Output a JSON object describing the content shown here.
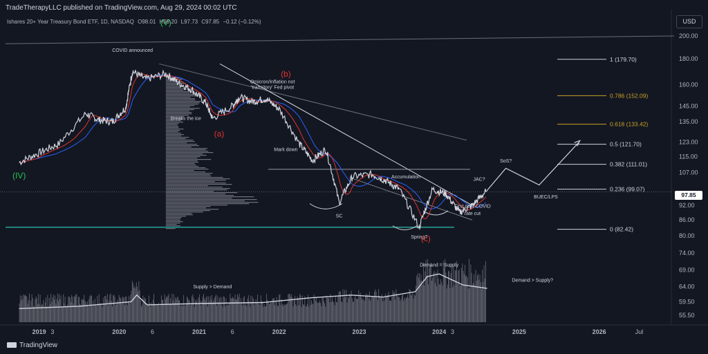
{
  "header": {
    "publisher": "TradeTherapyLLC published on TradingView.com, Aug 29, 2024 00:02 UTC",
    "symbol": "Ishares 20+ Year Treasury Bond ETF, 1D, NASDAQ",
    "ohlc": [
      "O98.01",
      "H98.20",
      "L97.73",
      "C97.85",
      "−0.12 (−0.12%)"
    ]
  },
  "currency_button": "USD",
  "last_price_label": "97.85",
  "brand": "TradingView",
  "colors": {
    "background": "#131722",
    "price": "#d1d4dc",
    "ma_fast": "#e0342f",
    "ma_slow": "#2962ff",
    "wave_green": "#26c253",
    "wave_red": "#e0342f",
    "fib_gold": "#c9a227",
    "support": "#26a69a"
  },
  "chart_data": {
    "type": "line",
    "x_ticks": [
      "2019",
      "3",
      "2020",
      "6",
      "2021",
      "6",
      "2022",
      "2023",
      "2024",
      "3",
      "2025",
      "2026",
      "Jul"
    ],
    "y_ticks_price": [
      200,
      180,
      160,
      145,
      135,
      123,
      115,
      107,
      92,
      86,
      80
    ],
    "y_ticks_volume": [
      74,
      69,
      64,
      59.5,
      55.5
    ],
    "series": [
      {
        "dates": [
          "2018-10",
          "2019-01",
          "2019-04",
          "2019-08",
          "2019-10",
          "2019-12",
          "2020-02",
          "2020-03",
          "2020-05",
          "2020-08",
          "2020-10",
          "2020-12",
          "2021-02",
          "2021-03",
          "2021-06",
          "2021-07",
          "2021-09",
          "2021-11",
          "2022-01",
          "2022-04",
          "2022-06",
          "2022-08",
          "2022-10",
          "2022-12",
          "2023-03",
          "2023-05",
          "2023-07",
          "2023-10",
          "2023-12",
          "2024-02",
          "2024-04",
          "2024-06",
          "2024-08"
        ],
        "values": [
          112,
          117,
          122,
          140,
          136,
          135,
          144,
          170,
          164,
          168,
          161,
          156,
          147,
          137,
          145,
          151,
          148,
          150,
          143,
          122,
          113,
          119,
          93,
          105,
          106,
          103,
          99,
          83,
          99,
          97,
          89,
          92,
          98
        ]
      }
    ],
    "fib_levels": [
      {
        "label": "1 (179.70)",
        "value": 179.7
      },
      {
        "label": "0.786 (152.09)",
        "value": 152.09
      },
      {
        "label": "0.618 (133.42)",
        "value": 133.42
      },
      {
        "label": "0.5 (121.70)",
        "value": 121.7
      },
      {
        "label": "0.382 (111.01)",
        "value": 111.01
      },
      {
        "label": "0.236 (99.07)",
        "value": 99.07
      },
      {
        "label": "0 (82.42)",
        "value": 82.42
      }
    ],
    "projection": [
      {
        "date": "2024-11",
        "value": 109
      },
      {
        "date": "2025-04",
        "value": 101
      },
      {
        "date": "2025-10",
        "value": 123
      }
    ],
    "annotations": [
      {
        "text": "COVID announced",
        "date": "2020-03",
        "value": 186
      },
      {
        "text": "Omicron/Inflation not",
        "date": "2021-12",
        "value": 161
      },
      {
        "text": "'transitory' Fed pivot",
        "date": "2021-12",
        "value": 157
      },
      {
        "text": "Breaks the ice",
        "date": "2020-11",
        "value": 136
      },
      {
        "text": "Mark down",
        "date": "2022-02",
        "value": 118
      },
      {
        "text": "Accumulation",
        "date": "2023-08",
        "value": 104
      },
      {
        "text": "SC",
        "date": "2022-10",
        "value": 87
      },
      {
        "text": "Spring?",
        "date": "2023-10",
        "value": 79
      },
      {
        "text": "SoS?",
        "date": "2024-11",
        "value": 112
      },
      {
        "text": "JAC?",
        "date": "2024-07",
        "value": 103
      },
      {
        "text": "BUEC/LPS",
        "date": "2025-05",
        "value": 95
      },
      {
        "text": "First post COVID",
        "date": "2024-06",
        "value": 91
      },
      {
        "text": "rate cut",
        "date": "2024-06",
        "value": 88
      },
      {
        "text": "Supply > Demand",
        "date": "2021-03",
        "value": 63.5
      },
      {
        "text": "Demand = Supply",
        "date": "2024-01",
        "value": 70
      },
      {
        "text": "Demand > Supply?",
        "date": "2025-03",
        "value": 65.5
      }
    ],
    "waves": [
      {
        "text": "(V)",
        "date": "2020-08",
        "value": 210,
        "color": "green"
      },
      {
        "text": "(IV)",
        "date": "2018-10",
        "value": 104,
        "color": "green"
      },
      {
        "text": "(b)",
        "date": "2022-02",
        "value": 166,
        "color": "red"
      },
      {
        "text": "(a)",
        "date": "2021-04",
        "value": 126,
        "color": "red"
      },
      {
        "text": "(c)",
        "date": "2023-11",
        "value": 78,
        "color": "red"
      }
    ],
    "support_level": 83.2
  }
}
